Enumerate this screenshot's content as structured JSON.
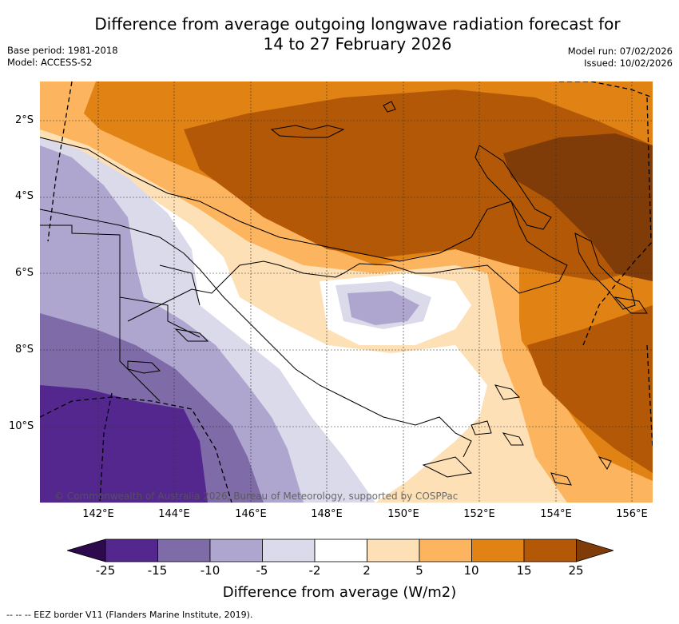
{
  "title_line1": "Difference from average outgoing longwave radiation forecast for",
  "title_line2": "14 to 27 February 2026",
  "base_period": "Base period: 1981-2018",
  "model": "Model: ACCESS-S2",
  "model_run": "Model run: 07/02/2026",
  "issued": "Issued: 10/02/2026",
  "lat_labels": [
    "2°S",
    "4°S",
    "6°S",
    "8°S",
    "10°S"
  ],
  "lon_labels": [
    "142°E",
    "144°E",
    "146°E",
    "148°E",
    "150°E",
    "152°E",
    "154°E",
    "156°E"
  ],
  "copyright": "© Commonwealth of Australia 2026, Bureau of Meteorology, supported by COSPPac",
  "colorbar": {
    "ticks": [
      "-25",
      "-15",
      "-10",
      "-5",
      "-2",
      "2",
      "5",
      "10",
      "15",
      "25"
    ],
    "colors": [
      "#2d0a4e",
      "#54278f",
      "#7e6ba8",
      "#afa6cf",
      "#dadaeb",
      "#ffffff",
      "#fee0b6",
      "#fdb45e",
      "#e08214",
      "#b35806",
      "#7f3b08"
    ],
    "label": "Difference from average (W/m2)"
  },
  "footer": "--  --  -- EEZ border V11 (Flanders Marine Institute, 2019).",
  "map_data": {
    "region": "Papua New Guinea",
    "lon_range_deg_e": [
      140.6,
      156.5
    ],
    "lat_range_deg_s": [
      1.0,
      12.0
    ],
    "anomaly_field_range_wm2": [
      -25,
      25
    ]
  }
}
